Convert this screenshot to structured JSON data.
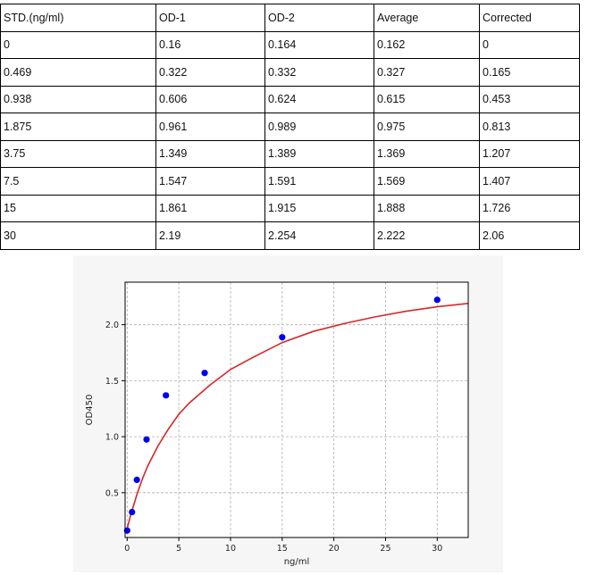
{
  "table": {
    "headers": [
      "STD.(ng/ml)",
      "OD-1",
      "OD-2",
      "Average",
      "Corrected"
    ],
    "rows": [
      [
        "0",
        "0.16",
        "0.164",
        "0.162",
        "0"
      ],
      [
        "0.469",
        "0.322",
        "0.332",
        "0.327",
        "0.165"
      ],
      [
        "0.938",
        "0.606",
        "0.624",
        "0.615",
        "0.453"
      ],
      [
        "1.875",
        "0.961",
        "0.989",
        "0.975",
        "0.813"
      ],
      [
        "3.75",
        "1.349",
        "1.389",
        "1.369",
        "1.207"
      ],
      [
        "7.5",
        "1.547",
        "1.591",
        "1.569",
        "1.407"
      ],
      [
        "15",
        "1.861",
        "1.915",
        "1.888",
        "1.726"
      ],
      [
        "30",
        "2.19",
        "2.254",
        "2.222",
        "2.06"
      ]
    ]
  },
  "chart_data": {
    "type": "scatter",
    "xlabel": "ng/ml",
    "ylabel": "OD450",
    "xlim": [
      -0.2,
      33
    ],
    "ylim": [
      0.1,
      2.38
    ],
    "xticks": [
      0,
      5,
      10,
      15,
      20,
      25,
      30
    ],
    "yticks": [
      0.5,
      1.0,
      1.5,
      2.0
    ],
    "xtick_labels": [
      "0",
      "5",
      "10",
      "15",
      "20",
      "25",
      "30"
    ],
    "ytick_labels": [
      "0.5",
      "1.0",
      "1.5",
      "2.0"
    ],
    "grid": true,
    "series": [
      {
        "kind": "points",
        "color": "#0000ee",
        "x": [
          0,
          0.469,
          0.938,
          1.875,
          3.75,
          7.5,
          15,
          30
        ],
        "y": [
          0.162,
          0.327,
          0.615,
          0.975,
          1.369,
          1.569,
          1.888,
          2.222
        ]
      },
      {
        "kind": "fit_curve",
        "color": "#d62728",
        "x": [
          0,
          0.25,
          0.5,
          1,
          1.5,
          2,
          3,
          4,
          5,
          6,
          8,
          10,
          12,
          15,
          18,
          21,
          24,
          27,
          30,
          33
        ],
        "y": [
          0.18,
          0.27,
          0.35,
          0.5,
          0.63,
          0.74,
          0.92,
          1.07,
          1.2,
          1.3,
          1.46,
          1.6,
          1.7,
          1.84,
          1.94,
          2.01,
          2.07,
          2.12,
          2.16,
          2.19
        ]
      }
    ]
  }
}
